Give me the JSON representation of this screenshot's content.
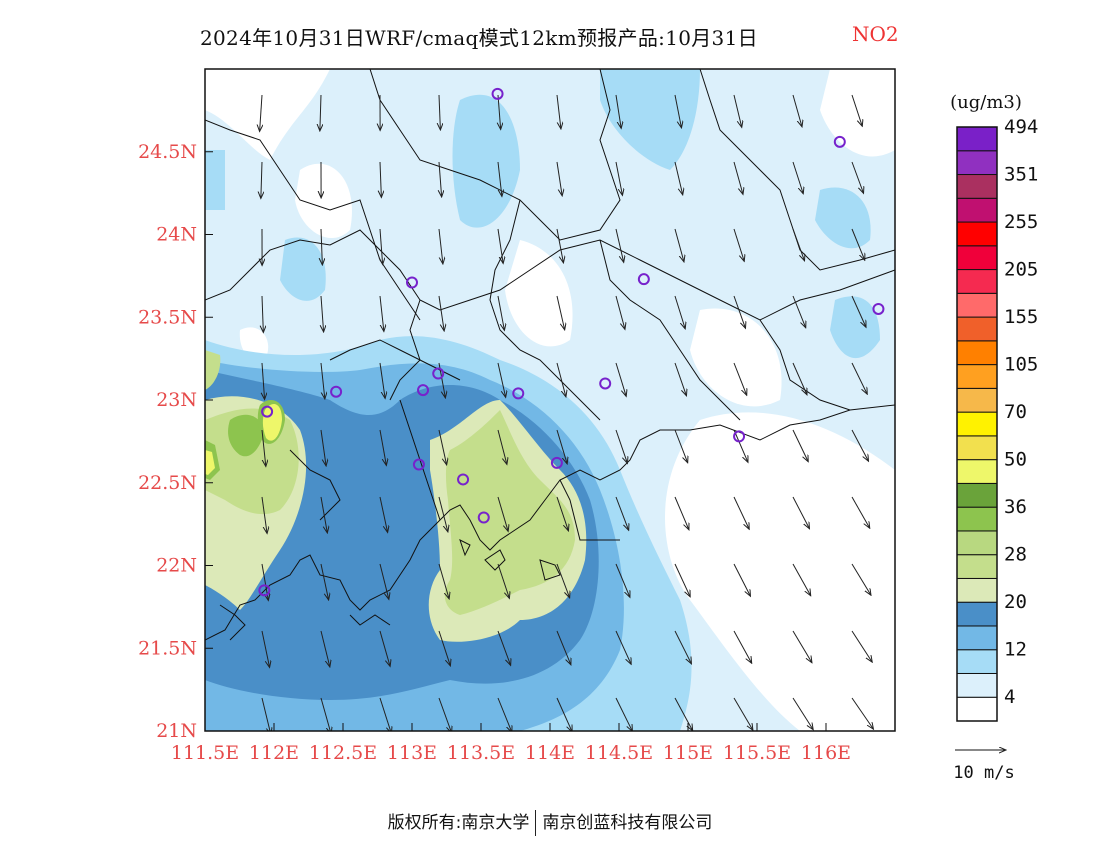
{
  "title": "2024年10月31日WRF/cmaq模式12km预报产品:10月31日",
  "species": "NO2",
  "footer": {
    "left": "版权所有:南京大学",
    "right": "南京创蓝科技有限公司"
  },
  "map": {
    "lon_range": [
      111.5,
      116.5
    ],
    "lat_range": [
      21,
      25
    ],
    "x_ticks": [
      {
        "value": 111.5,
        "label": "111.5E"
      },
      {
        "value": 112,
        "label": "112E"
      },
      {
        "value": 112.5,
        "label": "112.5E"
      },
      {
        "value": 113,
        "label": "113E"
      },
      {
        "value": 113.5,
        "label": "113.5E"
      },
      {
        "value": 114,
        "label": "114E"
      },
      {
        "value": 114.5,
        "label": "114.5E"
      },
      {
        "value": 115,
        "label": "115E"
      },
      {
        "value": 115.5,
        "label": "115.5E"
      },
      {
        "value": 116,
        "label": "116E"
      }
    ],
    "y_ticks": [
      {
        "value": 21,
        "label": "21N"
      },
      {
        "value": 21.5,
        "label": "21.5N"
      },
      {
        "value": 22,
        "label": "22N"
      },
      {
        "value": 22.5,
        "label": "22.5N"
      },
      {
        "value": 23,
        "label": "23N"
      },
      {
        "value": 23.5,
        "label": "23.5N"
      },
      {
        "value": 24,
        "label": "24N"
      },
      {
        "value": 24.5,
        "label": "24.5N"
      }
    ],
    "axis_label_color": "#e64a4a",
    "stations": [
      {
        "lon": 113.62,
        "lat": 24.85
      },
      {
        "lon": 116.1,
        "lat": 24.56
      },
      {
        "lon": 113.0,
        "lat": 23.71
      },
      {
        "lon": 114.68,
        "lat": 23.73
      },
      {
        "lon": 116.38,
        "lat": 23.55
      },
      {
        "lon": 112.45,
        "lat": 23.05
      },
      {
        "lon": 113.08,
        "lat": 23.06
      },
      {
        "lon": 113.19,
        "lat": 23.16
      },
      {
        "lon": 113.77,
        "lat": 23.04
      },
      {
        "lon": 114.4,
        "lat": 23.1
      },
      {
        "lon": 111.95,
        "lat": 22.93
      },
      {
        "lon": 115.37,
        "lat": 22.78
      },
      {
        "lon": 113.05,
        "lat": 22.61
      },
      {
        "lon": 113.37,
        "lat": 22.52
      },
      {
        "lon": 114.05,
        "lat": 22.62
      },
      {
        "lon": 113.52,
        "lat": 22.29
      },
      {
        "lon": 111.93,
        "lat": 21.85
      }
    ],
    "station_color": "#7722cc",
    "wind_arrows": "southward / south-easterly flow, approx 8–12 m/s"
  },
  "legend": {
    "unit": "(ug/m3)",
    "colors": [
      "#ffffff",
      "#dcf0fb",
      "#a6dcf6",
      "#72b8e6",
      "#4a8fc8",
      "#dce9b8",
      "#c4de8c",
      "#b8d880",
      "#8dc44e",
      "#6aa33a",
      "#eef76a",
      "#f2e04e",
      "#fff200",
      "#f6b84a",
      "#ffa020",
      "#ff8000",
      "#f0602a",
      "#ff6a6a",
      "#f52a50",
      "#f0003a",
      "#ff0000",
      "#c01070",
      "#aa3060",
      "#9030c0",
      "#7a20c8"
    ],
    "labels": [
      "4",
      "12",
      "20",
      "28",
      "36",
      "50",
      "70",
      "105",
      "155",
      "205",
      "255",
      "351",
      "494"
    ],
    "wind_ref": "10 m/s"
  }
}
